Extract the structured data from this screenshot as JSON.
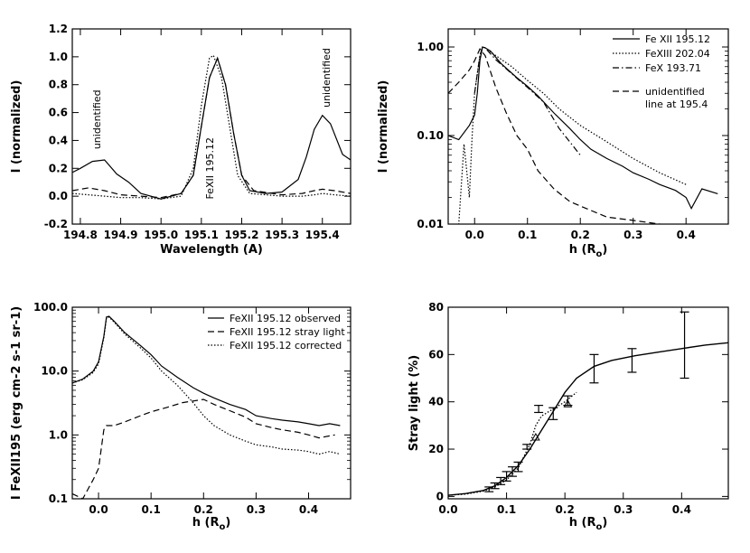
{
  "chart_data": [
    {
      "type": "line",
      "xlabel": "Wavelength (A)",
      "ylabel": "I (normalized)",
      "xlim": [
        194.78,
        195.47
      ],
      "ylim": [
        -0.2,
        1.2
      ],
      "xticks": [
        194.8,
        194.9,
        195.0,
        195.1,
        195.2,
        195.3,
        195.4
      ],
      "xtick_labels": [
        "194.8",
        "194.9",
        "195.0",
        "195.1",
        "195.2",
        "195.3",
        "195.4"
      ],
      "yticks": [
        -0.2,
        0.0,
        0.2,
        0.4,
        0.6,
        0.8,
        1.0,
        1.2
      ],
      "ytick_labels": [
        "-0.2",
        "0.0",
        "0.2",
        "0.4",
        "0.6",
        "0.8",
        "1.0",
        "1.2"
      ],
      "annotations": [
        {
          "text": "unidentified",
          "x": 194.84,
          "y": 0.55
        },
        {
          "text": "FeXII 195.12",
          "x": 195.12,
          "y": 0.2
        },
        {
          "text": "unidentified",
          "x": 195.41,
          "y": 0.85
        }
      ],
      "series": [
        {
          "style": "solid",
          "x": [
            194.78,
            194.8,
            194.83,
            194.86,
            194.89,
            194.92,
            194.95,
            195.0,
            195.05,
            195.08,
            195.1,
            195.12,
            195.14,
            195.16,
            195.18,
            195.2,
            195.22,
            195.26,
            195.3,
            195.34,
            195.36,
            195.38,
            195.4,
            195.42,
            195.45,
            195.47
          ],
          "y": [
            0.17,
            0.2,
            0.25,
            0.26,
            0.16,
            0.1,
            0.02,
            -0.02,
            0.02,
            0.15,
            0.5,
            0.85,
            0.99,
            0.8,
            0.45,
            0.15,
            0.04,
            0.02,
            0.03,
            0.12,
            0.28,
            0.48,
            0.58,
            0.52,
            0.3,
            0.26
          ]
        },
        {
          "style": "dashed",
          "x": [
            194.78,
            194.82,
            194.86,
            194.9,
            194.95,
            195.0,
            195.05,
            195.08,
            195.1,
            195.12,
            195.14,
            195.16,
            195.18,
            195.2,
            195.23,
            195.3,
            195.35,
            195.38,
            195.4,
            195.43,
            195.47
          ],
          "y": [
            0.04,
            0.06,
            0.04,
            0.01,
            0.0,
            -0.01,
            0.02,
            0.15,
            0.5,
            0.85,
            0.99,
            0.8,
            0.45,
            0.15,
            0.04,
            0.01,
            0.02,
            0.04,
            0.05,
            0.04,
            0.02
          ]
        },
        {
          "style": "dotted",
          "x": [
            194.78,
            194.82,
            194.86,
            194.9,
            194.95,
            195.0,
            195.05,
            195.08,
            195.1,
            195.12,
            195.13,
            195.15,
            195.17,
            195.19,
            195.22,
            195.3,
            195.35,
            195.38,
            195.4,
            195.43,
            195.47
          ],
          "y": [
            0.02,
            0.01,
            0.0,
            -0.01,
            -0.01,
            -0.02,
            0.0,
            0.2,
            0.65,
            0.99,
            1.01,
            0.85,
            0.5,
            0.15,
            0.02,
            0.0,
            0.0,
            0.01,
            0.02,
            0.01,
            0.0
          ]
        }
      ]
    },
    {
      "type": "line",
      "xlabel": "h (Ro)",
      "ylabel": "I (normalized)",
      "log_y": true,
      "xlim": [
        -0.05,
        0.48
      ],
      "ylim": [
        0.01,
        1.6
      ],
      "xticks": [
        0.0,
        0.1,
        0.2,
        0.3,
        0.4
      ],
      "xtick_labels": [
        "0.0",
        "0.1",
        "0.2",
        "0.3",
        "0.4"
      ],
      "yticks": [
        0.01,
        0.1,
        1.0
      ],
      "ytick_labels": [
        "0.01",
        "0.10",
        "1.00"
      ],
      "legend_position": "top-right",
      "series": [
        {
          "name": "Fe XII 195.12",
          "style": "solid",
          "x": [
            -0.05,
            -0.03,
            -0.01,
            0.0,
            0.005,
            0.01,
            0.015,
            0.02,
            0.03,
            0.05,
            0.08,
            0.1,
            0.12,
            0.15,
            0.18,
            0.2,
            0.22,
            0.25,
            0.28,
            0.3,
            0.33,
            0.35,
            0.38,
            0.4,
            0.41,
            0.43,
            0.46
          ],
          "y": [
            0.1,
            0.09,
            0.13,
            0.17,
            0.3,
            0.7,
            1.0,
            0.98,
            0.9,
            0.65,
            0.45,
            0.36,
            0.28,
            0.18,
            0.12,
            0.09,
            0.07,
            0.055,
            0.045,
            0.038,
            0.032,
            0.028,
            0.024,
            0.02,
            0.015,
            0.025,
            0.022
          ]
        },
        {
          "name": "FeXIII 202.04",
          "style": "dotted",
          "x": [
            -0.04,
            -0.03,
            -0.02,
            -0.015,
            -0.01,
            -0.005,
            0.0,
            0.005,
            0.01,
            0.015,
            0.02,
            0.04,
            0.07,
            0.1,
            0.13,
            0.16,
            0.2,
            0.25,
            0.3,
            0.35,
            0.4
          ],
          "y": [
            0.008,
            0.01,
            0.08,
            0.04,
            0.02,
            0.09,
            0.3,
            0.5,
            0.8,
            1.0,
            0.98,
            0.8,
            0.6,
            0.42,
            0.3,
            0.2,
            0.13,
            0.085,
            0.055,
            0.038,
            0.028
          ]
        },
        {
          "name": "FeX 193.71",
          "style": "dashdot",
          "x": [
            0.0,
            0.01,
            0.015,
            0.02,
            0.04,
            0.07,
            0.1,
            0.13,
            0.16,
            0.2
          ],
          "y": [
            0.3,
            0.8,
            1.0,
            0.98,
            0.72,
            0.5,
            0.35,
            0.24,
            0.12,
            0.06
          ]
        },
        {
          "name": "unidentified line at 195.4",
          "style": "dashed",
          "x": [
            -0.05,
            -0.03,
            -0.01,
            0.0,
            0.01,
            0.02,
            0.04,
            0.06,
            0.08,
            0.1,
            0.12,
            0.15,
            0.18,
            0.2,
            0.25,
            0.3,
            0.35,
            0.4,
            0.43
          ],
          "y": [
            0.3,
            0.4,
            0.55,
            0.7,
            0.95,
            0.8,
            0.35,
            0.18,
            0.1,
            0.07,
            0.04,
            0.025,
            0.018,
            0.016,
            0.012,
            0.011,
            0.01,
            0.009,
            0.009
          ]
        }
      ]
    },
    {
      "type": "line",
      "xlabel": "h (Ro)",
      "ylabel": "I FeXII195 (erg cm-2 s-1 sr-1)",
      "log_y": true,
      "xlim": [
        -0.05,
        0.48
      ],
      "ylim": [
        0.1,
        100
      ],
      "xticks": [
        0.0,
        0.1,
        0.2,
        0.3,
        0.4
      ],
      "xtick_labels": [
        "0.0",
        "0.1",
        "0.2",
        "0.3",
        "0.4"
      ],
      "yticks": [
        0.1,
        1.0,
        10.0,
        100.0
      ],
      "ytick_labels": [
        "0.1",
        "1.0",
        "10.0",
        "100.0"
      ],
      "legend_position": "top-right",
      "series": [
        {
          "name": "FeXII 195.12 observed",
          "style": "solid",
          "x": [
            -0.05,
            -0.03,
            -0.01,
            0.0,
            0.01,
            0.015,
            0.02,
            0.03,
            0.05,
            0.08,
            0.1,
            0.12,
            0.15,
            0.18,
            0.2,
            0.22,
            0.25,
            0.28,
            0.3,
            0.33,
            0.35,
            0.38,
            0.4,
            0.42,
            0.44,
            0.46
          ],
          "y": [
            6.5,
            7.5,
            10,
            14,
            35,
            70,
            72,
            60,
            40,
            25,
            18,
            12,
            8,
            5.5,
            4.5,
            3.8,
            3.0,
            2.5,
            2.0,
            1.8,
            1.7,
            1.6,
            1.5,
            1.4,
            1.5,
            1.4
          ]
        },
        {
          "name": "FeXII 195.12 stray light",
          "style": "dashed",
          "x": [
            -0.05,
            -0.03,
            -0.01,
            0.0,
            0.01,
            0.015,
            0.03,
            0.05,
            0.08,
            0.1,
            0.13,
            0.16,
            0.19,
            0.2,
            0.22,
            0.25,
            0.28,
            0.3,
            0.33,
            0.35,
            0.38,
            0.4,
            0.42,
            0.45
          ],
          "y": [
            0.12,
            0.1,
            0.2,
            0.3,
            1.2,
            1.4,
            1.4,
            1.6,
            2.0,
            2.3,
            2.7,
            3.2,
            3.5,
            3.6,
            3.0,
            2.4,
            1.9,
            1.5,
            1.3,
            1.2,
            1.1,
            1.0,
            0.9,
            1.0
          ]
        },
        {
          "name": "FeXII 195.12 corrected",
          "style": "dotted",
          "x": [
            -0.05,
            -0.03,
            -0.01,
            0.0,
            0.01,
            0.015,
            0.02,
            0.03,
            0.05,
            0.08,
            0.1,
            0.12,
            0.15,
            0.18,
            0.2,
            0.22,
            0.25,
            0.28,
            0.3,
            0.33,
            0.35,
            0.38,
            0.4,
            0.42,
            0.44,
            0.46
          ],
          "y": [
            6.5,
            7.3,
            9.5,
            13,
            33,
            68,
            70,
            58,
            38,
            23,
            16,
            10,
            6,
            3.2,
            2.0,
            1.4,
            1.0,
            0.8,
            0.7,
            0.65,
            0.6,
            0.58,
            0.55,
            0.5,
            0.55,
            0.5
          ]
        }
      ]
    },
    {
      "type": "scatter",
      "xlabel": "h (Ro)",
      "ylabel": "Stray light (%)",
      "xlim": [
        0.0,
        0.48
      ],
      "ylim": [
        -1,
        80
      ],
      "xticks": [
        0.0,
        0.1,
        0.2,
        0.3,
        0.4
      ],
      "xtick_labels": [
        "0.0",
        "0.1",
        "0.2",
        "0.3",
        "0.4"
      ],
      "yticks": [
        0,
        20,
        40,
        60,
        80
      ],
      "ytick_labels": [
        "0",
        "20",
        "40",
        "60",
        "80"
      ],
      "fit_solid": {
        "x": [
          0.0,
          0.03,
          0.06,
          0.08,
          0.1,
          0.12,
          0.14,
          0.16,
          0.18,
          0.2,
          0.22,
          0.25,
          0.28,
          0.32,
          0.36,
          0.4,
          0.44,
          0.48
        ],
        "y": [
          0.5,
          1.2,
          2.5,
          4.5,
          8,
          13,
          20,
          28,
          36,
          44,
          50,
          55,
          57.5,
          59.5,
          61,
          62.5,
          64,
          65
        ]
      },
      "fit_dotted": {
        "x": [
          0.0,
          0.03,
          0.06,
          0.08,
          0.1,
          0.12,
          0.14,
          0.15,
          0.16,
          0.18,
          0.2,
          0.22
        ],
        "y": [
          0.5,
          1.0,
          2.2,
          4,
          7,
          12,
          22,
          30,
          34,
          37,
          40,
          44
        ]
      },
      "points": [
        {
          "x": 0.07,
          "y": 3.0,
          "err": 1.0
        },
        {
          "x": 0.08,
          "y": 4.5,
          "err": 1.2
        },
        {
          "x": 0.09,
          "y": 6.5,
          "err": 1.5
        },
        {
          "x": 0.1,
          "y": 8.5,
          "err": 2.0
        },
        {
          "x": 0.11,
          "y": 10.5,
          "err": 2.0
        },
        {
          "x": 0.12,
          "y": 12.5,
          "err": 2.0
        },
        {
          "x": 0.135,
          "y": 21.0,
          "err": 1.0
        },
        {
          "x": 0.155,
          "y": 37.0,
          "err": 1.5
        },
        {
          "x": 0.18,
          "y": 35.0,
          "err": 2.5
        },
        {
          "x": 0.205,
          "y": 40.5,
          "err": 2.0
        },
        {
          "x": 0.25,
          "y": 54.0,
          "err": 6.0
        },
        {
          "x": 0.315,
          "y": 57.5,
          "err": 5.0
        },
        {
          "x": 0.405,
          "y": 64.0,
          "err": 14.0
        }
      ],
      "triangles": [
        {
          "x": 0.15,
          "y": 25
        },
        {
          "x": 0.205,
          "y": 39
        }
      ]
    }
  ]
}
